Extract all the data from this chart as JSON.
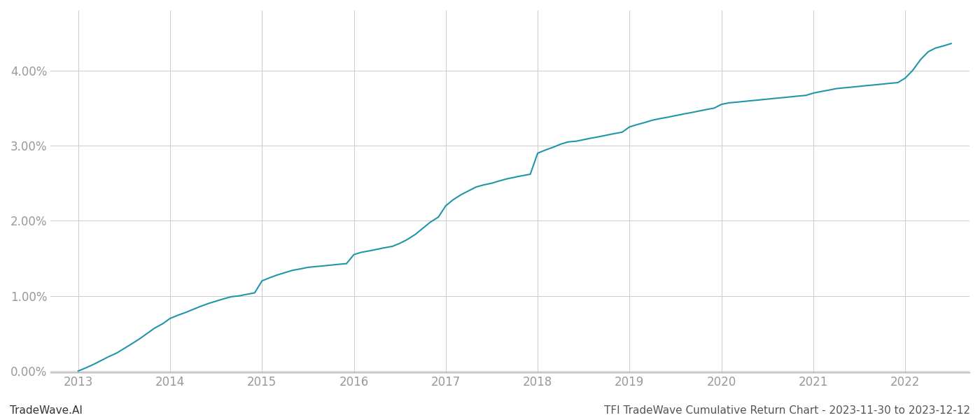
{
  "title": "TFI TradeWave Cumulative Return Chart - 2023-11-30 to 2023-12-12",
  "watermark": "TradeWave.AI",
  "line_color": "#2196a8",
  "background_color": "#ffffff",
  "grid_color": "#cccccc",
  "x_years": [
    2013,
    2014,
    2015,
    2016,
    2017,
    2018,
    2019,
    2020,
    2021,
    2022
  ],
  "x_data": [
    2013.0,
    2013.08,
    2013.17,
    2013.25,
    2013.33,
    2013.42,
    2013.5,
    2013.58,
    2013.67,
    2013.75,
    2013.83,
    2013.92,
    2014.0,
    2014.08,
    2014.17,
    2014.25,
    2014.33,
    2014.42,
    2014.5,
    2014.58,
    2014.67,
    2014.75,
    2014.83,
    2014.92,
    2015.0,
    2015.08,
    2015.17,
    2015.25,
    2015.33,
    2015.42,
    2015.5,
    2015.58,
    2015.67,
    2015.75,
    2015.83,
    2015.92,
    2016.0,
    2016.08,
    2016.17,
    2016.25,
    2016.33,
    2016.42,
    2016.5,
    2016.58,
    2016.67,
    2016.75,
    2016.83,
    2016.92,
    2017.0,
    2017.08,
    2017.17,
    2017.25,
    2017.33,
    2017.42,
    2017.5,
    2017.58,
    2017.67,
    2017.75,
    2017.83,
    2017.92,
    2018.0,
    2018.08,
    2018.17,
    2018.25,
    2018.33,
    2018.42,
    2018.5,
    2018.58,
    2018.67,
    2018.75,
    2018.83,
    2018.92,
    2019.0,
    2019.08,
    2019.17,
    2019.25,
    2019.33,
    2019.42,
    2019.5,
    2019.58,
    2019.67,
    2019.75,
    2019.83,
    2019.92,
    2020.0,
    2020.08,
    2020.17,
    2020.25,
    2020.33,
    2020.42,
    2020.5,
    2020.58,
    2020.67,
    2020.75,
    2020.83,
    2020.92,
    2021.0,
    2021.08,
    2021.17,
    2021.25,
    2021.33,
    2021.42,
    2021.5,
    2021.58,
    2021.67,
    2021.75,
    2021.83,
    2021.92,
    2022.0,
    2022.08,
    2022.17,
    2022.25,
    2022.33,
    2022.42,
    2022.5
  ],
  "y_data": [
    0.0,
    0.0004,
    0.0009,
    0.0014,
    0.0019,
    0.0024,
    0.003,
    0.0036,
    0.0043,
    0.005,
    0.0057,
    0.0063,
    0.007,
    0.0074,
    0.0078,
    0.0082,
    0.0086,
    0.009,
    0.0093,
    0.0096,
    0.0099,
    0.01,
    0.0102,
    0.0104,
    0.012,
    0.0124,
    0.0128,
    0.0131,
    0.0134,
    0.0136,
    0.0138,
    0.0139,
    0.014,
    0.0141,
    0.0142,
    0.0143,
    0.0155,
    0.0158,
    0.016,
    0.0162,
    0.0164,
    0.0166,
    0.017,
    0.0175,
    0.0182,
    0.019,
    0.0198,
    0.0205,
    0.022,
    0.0228,
    0.0235,
    0.024,
    0.0245,
    0.0248,
    0.025,
    0.0253,
    0.0256,
    0.0258,
    0.026,
    0.0262,
    0.029,
    0.0294,
    0.0298,
    0.0302,
    0.0305,
    0.0306,
    0.0308,
    0.031,
    0.0312,
    0.0314,
    0.0316,
    0.0318,
    0.0325,
    0.0328,
    0.0331,
    0.0334,
    0.0336,
    0.0338,
    0.034,
    0.0342,
    0.0344,
    0.0346,
    0.0348,
    0.035,
    0.0355,
    0.0357,
    0.0358,
    0.0359,
    0.036,
    0.0361,
    0.0362,
    0.0363,
    0.0364,
    0.0365,
    0.0366,
    0.0367,
    0.037,
    0.0372,
    0.0374,
    0.0376,
    0.0377,
    0.0378,
    0.0379,
    0.038,
    0.0381,
    0.0382,
    0.0383,
    0.0384,
    0.039,
    0.04,
    0.0415,
    0.0425,
    0.043,
    0.0433,
    0.0436
  ],
  "ylim": [
    -0.0002,
    0.048
  ],
  "yticks": [
    0.0,
    0.01,
    0.02,
    0.03,
    0.04
  ],
  "xlim": [
    2012.7,
    2022.7
  ],
  "title_fontsize": 11,
  "watermark_fontsize": 11,
  "tick_color": "#999999",
  "axis_color": "#999999",
  "spine_color": "#aaaaaa"
}
